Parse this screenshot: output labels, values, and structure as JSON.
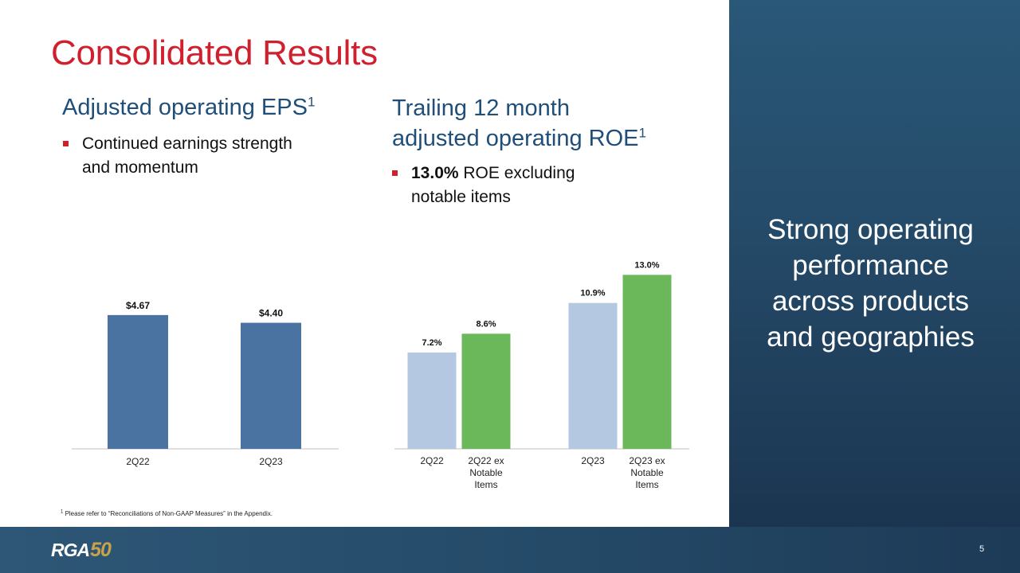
{
  "title": "Consolidated Results",
  "left_section": {
    "heading": "Adjusted operating EPS",
    "heading_sup": "1",
    "bullet_line1": "Continued earnings strength",
    "bullet_line2": "and momentum"
  },
  "right_section": {
    "heading_line1": "Trailing 12 month",
    "heading_line2": "adjusted operating ROE",
    "heading_sup": "1",
    "bullet_bold": "13.0%",
    "bullet_rest": " ROE excluding",
    "bullet_line2": "notable items"
  },
  "tagline": {
    "line1": "Strong operating",
    "line2": "performance",
    "line3": "across products",
    "line4": "and geographies"
  },
  "footnote": {
    "sup": "1",
    "text": " Please refer to “Reconciliations of Non-GAAP Measures” in the Appendix."
  },
  "footer": {
    "logo_text": "RGA",
    "logo_number": "50",
    "page_number": "5"
  },
  "colors": {
    "title_red": "#d0202e",
    "heading_blue": "#1f4e79",
    "eps_bar": "#4a73a1",
    "roe_light_bar": "#b4c8e1",
    "roe_green_bar": "#6bb85a",
    "panel_navy": "#244a68"
  },
  "chart_data": [
    {
      "type": "bar",
      "categories": [
        "2Q22",
        "2Q23"
      ],
      "values": [
        4.67,
        4.4
      ],
      "data_labels": [
        "$4.67",
        "$4.40"
      ],
      "color": "#4a73a1",
      "ylim": [
        0,
        5
      ]
    },
    {
      "type": "bar",
      "categories": [
        "2Q22",
        "2Q22 ex Notable Items",
        "2Q23",
        "2Q23 ex Notable Items"
      ],
      "category_lines": [
        [
          "2Q22"
        ],
        [
          "2Q22 ex",
          "Notable",
          "Items"
        ],
        [
          "2Q23"
        ],
        [
          "2Q23 ex",
          "Notable",
          "Items"
        ]
      ],
      "values": [
        7.2,
        8.6,
        10.9,
        13.0
      ],
      "data_labels": [
        "7.2%",
        "8.6%",
        "10.9%",
        "13.0%"
      ],
      "colors": [
        "#b4c8e1",
        "#6bb85a",
        "#b4c8e1",
        "#6bb85a"
      ],
      "ylim": [
        0,
        13.2
      ]
    }
  ]
}
